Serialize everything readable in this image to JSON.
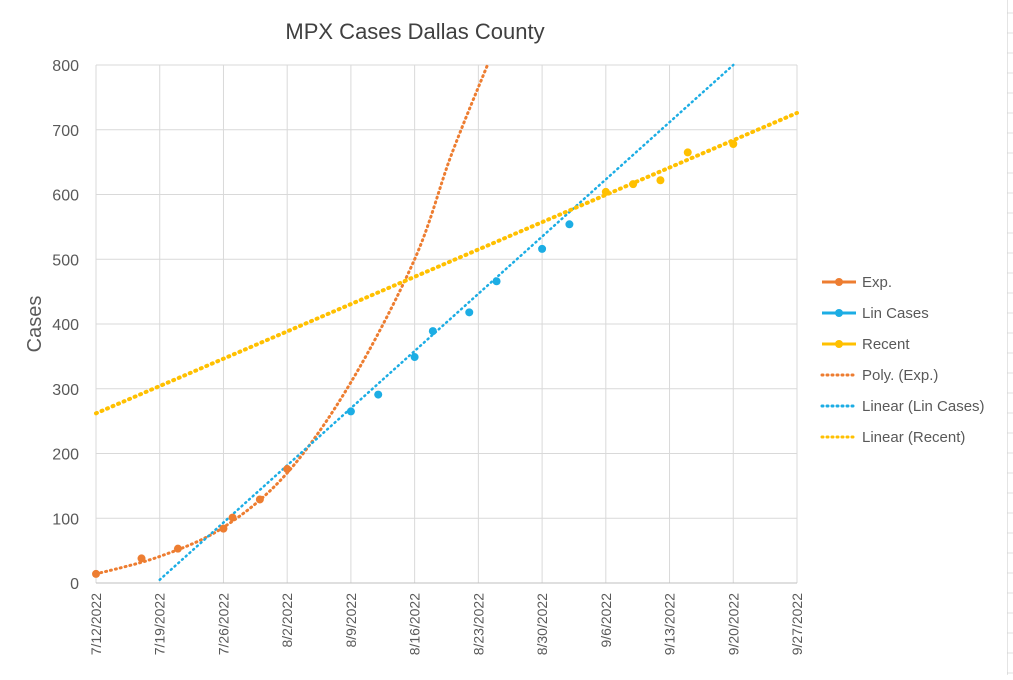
{
  "chart_data": {
    "type": "scatter",
    "title": "MPX Cases Dallas County",
    "xlabel": "",
    "ylabel": "Cases",
    "ylim": [
      0,
      800
    ],
    "yticks": [
      0,
      100,
      200,
      300,
      400,
      500,
      600,
      700,
      800
    ],
    "xlim": [
      "7/12/2022",
      "9/27/2022"
    ],
    "xticks": [
      "7/12/2022",
      "7/19/2022",
      "7/26/2022",
      "8/2/2022",
      "8/9/2022",
      "8/16/2022",
      "8/23/2022",
      "8/30/2022",
      "9/6/2022",
      "9/13/2022",
      "9/20/2022",
      "9/27/2022"
    ],
    "grid": true,
    "legend_position": "right",
    "series": [
      {
        "name": "Exp.",
        "color": "#ED7D31",
        "kind": "points",
        "points": [
          {
            "x": "7/12/2022",
            "y": 14
          },
          {
            "x": "7/17/2022",
            "y": 38
          },
          {
            "x": "7/21/2022",
            "y": 53
          },
          {
            "x": "7/26/2022",
            "y": 84
          },
          {
            "x": "7/27/2022",
            "y": 101
          },
          {
            "x": "7/30/2022",
            "y": 129
          },
          {
            "x": "8/2/2022",
            "y": 176
          }
        ]
      },
      {
        "name": "Lin Cases",
        "color": "#1CADE4",
        "kind": "points",
        "points": [
          {
            "x": "8/9/2022",
            "y": 265
          },
          {
            "x": "8/12/2022",
            "y": 291
          },
          {
            "x": "8/16/2022",
            "y": 349
          },
          {
            "x": "8/18/2022",
            "y": 389
          },
          {
            "x": "8/22/2022",
            "y": 418
          },
          {
            "x": "8/25/2022",
            "y": 466
          },
          {
            "x": "8/30/2022",
            "y": 516
          },
          {
            "x": "9/2/2022",
            "y": 554
          }
        ]
      },
      {
        "name": "Recent",
        "color": "#FFC000",
        "kind": "points",
        "points": [
          {
            "x": "9/6/2022",
            "y": 604
          },
          {
            "x": "9/9/2022",
            "y": 616
          },
          {
            "x": "9/12/2022",
            "y": 622
          },
          {
            "x": "9/15/2022",
            "y": 665
          },
          {
            "x": "9/20/2022",
            "y": 678
          }
        ]
      },
      {
        "name": "Poly. (Exp.)",
        "color": "#ED7D31",
        "kind": "trendline",
        "points": [
          {
            "x": "7/12/2022",
            "y": 14
          },
          {
            "x": "7/19/2022",
            "y": 41
          },
          {
            "x": "7/26/2022",
            "y": 86
          },
          {
            "x": "8/2/2022",
            "y": 170
          },
          {
            "x": "8/9/2022",
            "y": 310
          },
          {
            "x": "8/16/2022",
            "y": 500
          },
          {
            "x": "8/20/2022",
            "y": 660
          },
          {
            "x": "8/24/2022",
            "y": 800
          }
        ]
      },
      {
        "name": "Linear (Lin Cases)",
        "color": "#1CADE4",
        "kind": "trendline",
        "points": [
          {
            "x": "7/19/2022",
            "y": 5
          },
          {
            "x": "9/20/2022",
            "y": 800
          }
        ]
      },
      {
        "name": "Linear (Recent)",
        "color": "#FFC000",
        "kind": "trendline",
        "points": [
          {
            "x": "7/12/2022",
            "y": 262
          },
          {
            "x": "9/27/2022",
            "y": 726
          }
        ]
      }
    ]
  },
  "colors": {
    "grid": "#d9d9d9",
    "axis_text": "#595959",
    "title_text": "#404040",
    "background_grid": "#e2e2e2"
  }
}
